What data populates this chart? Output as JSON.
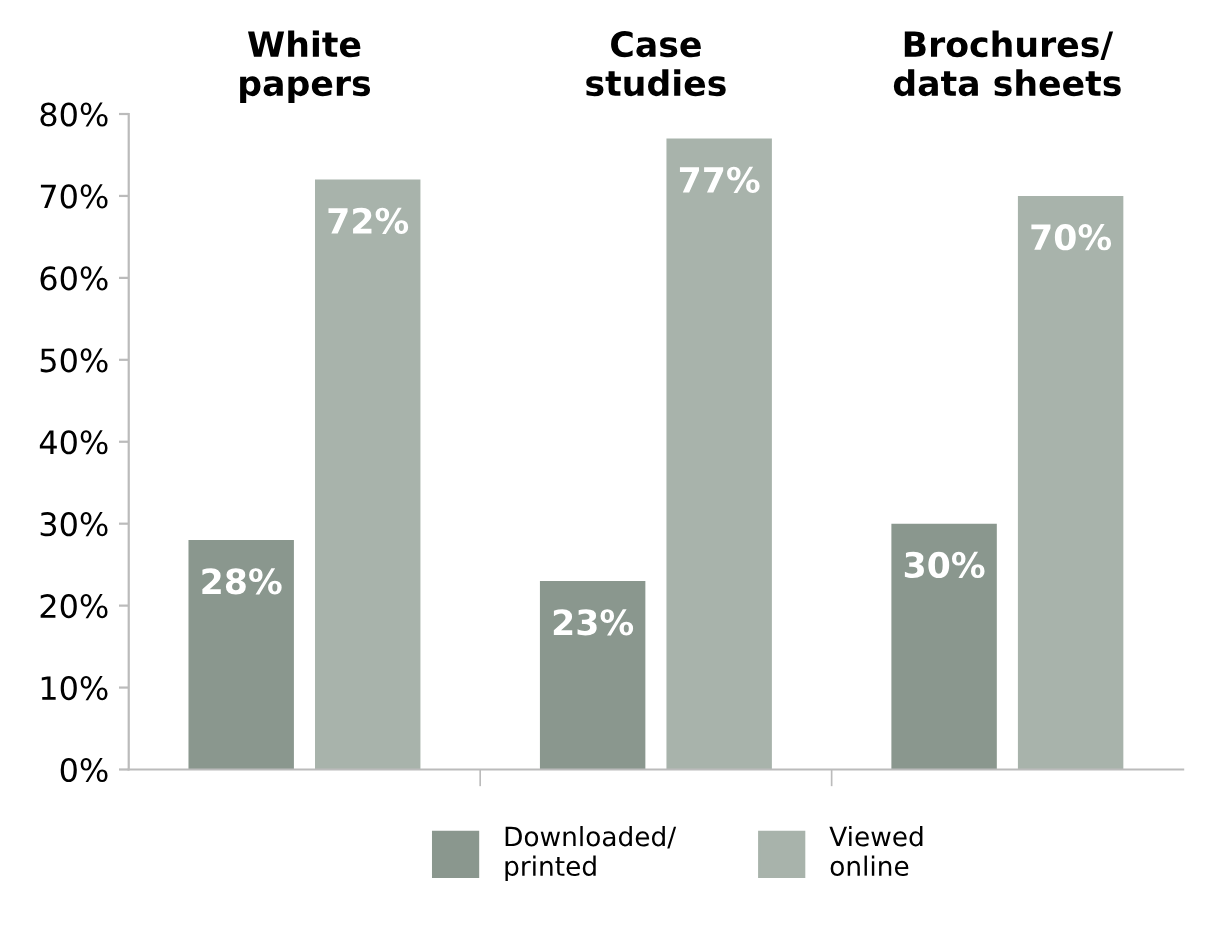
{
  "chart_data": {
    "type": "bar",
    "categories": [
      "White\npapers",
      "Case\nstudies",
      "Brochures/\ndata sheets"
    ],
    "series": [
      {
        "name": "Downloaded/\nprinted",
        "color": "#8a978e",
        "values": [
          28,
          23,
          30
        ],
        "value_labels": [
          "28%",
          "23%",
          "30%"
        ]
      },
      {
        "name": "Viewed\nonline",
        "color": "#a8b3ab",
        "values": [
          72,
          77,
          70
        ],
        "value_labels": [
          "72%",
          "77%",
          "70%"
        ]
      }
    ],
    "ylim": [
      0,
      80
    ],
    "yticks": [
      {
        "value": 0,
        "label": "0%"
      },
      {
        "value": 10,
        "label": "10%"
      },
      {
        "value": 20,
        "label": "20%"
      },
      {
        "value": 30,
        "label": "30%"
      },
      {
        "value": 40,
        "label": "40%"
      },
      {
        "value": 50,
        "label": "50%"
      },
      {
        "value": 60,
        "label": "60%"
      },
      {
        "value": 70,
        "label": "70%"
      },
      {
        "value": 80,
        "label": "80%"
      }
    ],
    "grid": false,
    "legend": "bottom"
  }
}
